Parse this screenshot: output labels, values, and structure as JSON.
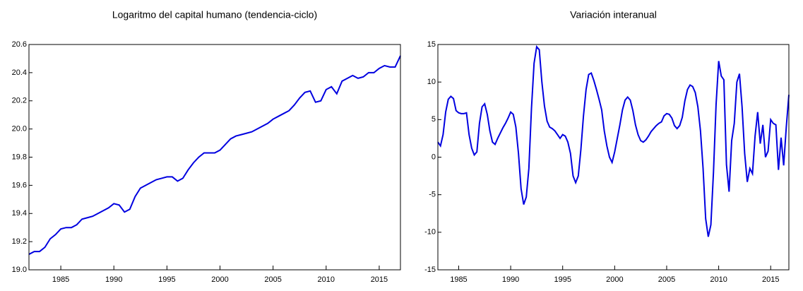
{
  "chart_data": [
    {
      "type": "line",
      "title": "Logaritmo del capital humano (tendencia-ciclo)",
      "color": "#0000e0",
      "x": [
        1982,
        1982.5,
        1983,
        1983.5,
        1984,
        1984.5,
        1985,
        1985.5,
        1986,
        1986.5,
        1987,
        1987.5,
        1988,
        1988.5,
        1989,
        1989.5,
        1990,
        1990.5,
        1991,
        1991.5,
        1992,
        1992.5,
        1993,
        1993.5,
        1994,
        1994.5,
        1995,
        1995.5,
        1996,
        1996.5,
        1997,
        1997.5,
        1998,
        1998.5,
        1999,
        1999.5,
        2000,
        2000.5,
        2001,
        2001.5,
        2002,
        2002.5,
        2003,
        2003.5,
        2004,
        2004.5,
        2005,
        2005.5,
        2006,
        2006.5,
        2007,
        2007.5,
        2008,
        2008.5,
        2009,
        2009.5,
        2010,
        2010.5,
        2011,
        2011.5,
        2012,
        2012.5,
        2013,
        2013.5,
        2014,
        2014.5,
        2015,
        2015.5,
        2016,
        2016.5,
        2017
      ],
      "values": [
        19.11,
        19.13,
        19.13,
        19.16,
        19.22,
        19.25,
        19.29,
        19.3,
        19.3,
        19.32,
        19.36,
        19.37,
        19.38,
        19.4,
        19.42,
        19.44,
        19.47,
        19.46,
        19.41,
        19.43,
        19.52,
        19.58,
        19.6,
        19.62,
        19.64,
        19.65,
        19.66,
        19.66,
        19.63,
        19.65,
        19.71,
        19.76,
        19.8,
        19.83,
        19.83,
        19.83,
        19.85,
        19.89,
        19.93,
        19.95,
        19.96,
        19.97,
        19.98,
        20.0,
        20.02,
        20.04,
        20.07,
        20.09,
        20.11,
        20.13,
        20.17,
        20.22,
        20.26,
        20.27,
        20.19,
        20.2,
        20.28,
        20.3,
        20.25,
        20.34,
        20.36,
        20.38,
        20.36,
        20.37,
        20.4,
        20.4,
        20.43,
        20.45,
        20.44,
        20.44,
        20.52
      ],
      "xlim": [
        1982,
        2017
      ],
      "xticks": [
        1985,
        1990,
        1995,
        2000,
        2005,
        2010,
        2015
      ],
      "ylim": [
        19,
        20.6
      ],
      "yticks": [
        {
          "value": 19,
          "label": "19.0"
        },
        19.2,
        19.4,
        19.6,
        19.8,
        {
          "value": 20,
          "label": "20.0"
        },
        20.2,
        20.4,
        20.6
      ]
    },
    {
      "type": "line",
      "title": "Variación interanual",
      "color": "#0000e0",
      "x": [
        1983,
        1983.25,
        1983.5,
        1983.75,
        1984,
        1984.25,
        1984.5,
        1984.75,
        1985,
        1985.25,
        1985.5,
        1985.75,
        1986,
        1986.25,
        1986.5,
        1986.75,
        1987,
        1987.25,
        1987.5,
        1987.75,
        1988,
        1988.25,
        1988.5,
        1988.75,
        1989,
        1989.25,
        1989.5,
        1989.75,
        1990,
        1990.25,
        1990.5,
        1990.75,
        1991,
        1991.25,
        1991.5,
        1991.75,
        1992,
        1992.25,
        1992.5,
        1992.75,
        1993,
        1993.25,
        1993.5,
        1993.75,
        1994,
        1994.25,
        1994.5,
        1994.75,
        1995,
        1995.25,
        1995.5,
        1995.75,
        1996,
        1996.25,
        1996.5,
        1996.75,
        1997,
        1997.25,
        1997.5,
        1997.75,
        1998,
        1998.25,
        1998.5,
        1998.75,
        1999,
        1999.25,
        1999.5,
        1999.75,
        2000,
        2000.25,
        2000.5,
        2000.75,
        2001,
        2001.25,
        2001.5,
        2001.75,
        2002,
        2002.25,
        2002.5,
        2002.75,
        2003,
        2003.25,
        2003.5,
        2003.75,
        2004,
        2004.25,
        2004.5,
        2004.75,
        2005,
        2005.25,
        2005.5,
        2005.75,
        2006,
        2006.25,
        2006.5,
        2006.75,
        2007,
        2007.25,
        2007.5,
        2007.75,
        2008,
        2008.25,
        2008.5,
        2008.75,
        2009,
        2009.25,
        2009.5,
        2009.75,
        2010,
        2010.25,
        2010.5,
        2010.75,
        2011,
        2011.25,
        2011.5,
        2011.75,
        2012,
        2012.25,
        2012.5,
        2012.75,
        2013,
        2013.25,
        2013.5,
        2013.75,
        2014,
        2014.25,
        2014.5,
        2014.75,
        2015,
        2015.25,
        2015.5,
        2015.75,
        2016,
        2016.25,
        2016.5,
        2016.75
      ],
      "values": [
        2,
        1.5,
        3,
        6,
        7.7,
        8.1,
        7.8,
        6.2,
        5.9,
        5.8,
        5.8,
        5.9,
        3,
        1.2,
        0.3,
        0.7,
        4.5,
        6.7,
        7.1,
        5.7,
        3.5,
        2,
        1.7,
        2.5,
        3.2,
        3.9,
        4.5,
        5.2,
        6,
        5.7,
        4,
        0.5,
        -4.2,
        -6.3,
        -5.3,
        -1.5,
        6.5,
        12.5,
        14.7,
        14.3,
        10,
        6.8,
        4.8,
        4,
        3.8,
        3.5,
        3,
        2.5,
        3,
        2.8,
        2,
        0.5,
        -2.5,
        -3.4,
        -2.5,
        1,
        5.5,
        9,
        11,
        11.2,
        10.2,
        9,
        7.7,
        6.3,
        3.5,
        1.5,
        0,
        -0.7,
        0.7,
        2.5,
        4.3,
        6.3,
        7.6,
        8,
        7.6,
        6.2,
        4.3,
        3,
        2.2,
        2,
        2.3,
        2.8,
        3.4,
        3.8,
        4.2,
        4.5,
        4.7,
        5.5,
        5.8,
        5.7,
        5.2,
        4.2,
        3.8,
        4.2,
        5.3,
        7.5,
        9,
        9.6,
        9.4,
        8.6,
        6.7,
        3.5,
        -1.5,
        -8.2,
        -10.6,
        -9,
        -2,
        7,
        12.8,
        10.8,
        10.3,
        -1,
        -4.6,
        2.2,
        4.5,
        10,
        11.1,
        6.7,
        0.5,
        -3.3,
        -1.5,
        -2.2,
        2.8,
        6,
        1.8,
        4.3,
        0,
        0.8,
        5,
        4.5,
        4.3,
        -1.7,
        2.6,
        -1.1,
        4,
        8.3
      ],
      "xlim": [
        1983,
        2016.75
      ],
      "xticks": [
        1985,
        1990,
        1995,
        2000,
        2005,
        2010,
        2015
      ],
      "ylim": [
        -15,
        15
      ],
      "yticks": [
        -15,
        -10,
        -5,
        0,
        5,
        10,
        15
      ]
    }
  ]
}
